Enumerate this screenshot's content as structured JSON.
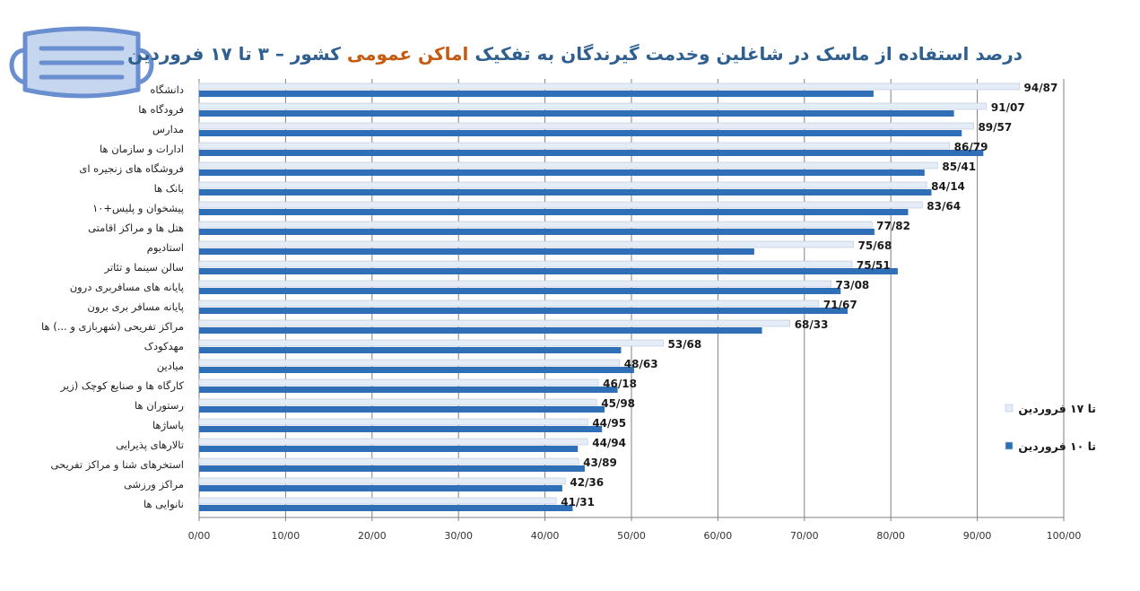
{
  "title": {
    "part1": "درصد استفاده از ماسک در شاغلین وخدمت گیرندگان به تفکیک",
    "part2": "اماکن عمومی",
    "part3": "کشور  –  ۳ تا ۱۷ فروردین"
  },
  "chart_data": {
    "type": "bar",
    "orientation": "horizontal",
    "categories": [
      "دانشگاه",
      "فرودگاه ها",
      "مدارس",
      "ادارات و سازمان ها",
      "فروشگاه های زنجیره ای",
      "بانک ها",
      "پیشخوان و پلیس+۱۰",
      "هتل ها و مراکز اقامتی",
      "استادیوم",
      "سالن سینما و تئاتر",
      "پایانه های مسافربری درون ",
      "پایانه مسافر بری برون ",
      "مراکز تفریحی (شهربازی و ...) ها",
      "مهدکودک",
      "میادین",
      "کارگاه ها و صنایع کوچک (زیر ",
      "رستوران ها",
      "پاساژها",
      "تالارهای پذیرایی",
      "استخرهای شنا و مراکز تفریحی ",
      "مراکز ورزشی",
      "نانوایی ها"
    ],
    "series": [
      {
        "name": "تا ۱۷ فروردین",
        "color": "#e4ecf7",
        "values": [
          94.87,
          91.07,
          89.57,
          86.79,
          85.41,
          84.14,
          83.64,
          77.82,
          75.68,
          75.51,
          73.08,
          71.67,
          68.33,
          53.68,
          48.63,
          46.18,
          45.98,
          44.95,
          44.94,
          43.89,
          42.36,
          41.31
        ],
        "labels": [
          "94/87",
          "91/07",
          "89/57",
          "86/79",
          "85/41",
          "84/14",
          "83/64",
          "77/82",
          "75/68",
          "75/51",
          "73/08",
          "71/67",
          "68/33",
          "53/68",
          "48/63",
          "46/18",
          "45/98",
          "44/95",
          "44/94",
          "43/89",
          "42/36",
          "41/31"
        ]
      },
      {
        "name": "تا ۱۰ فروردین",
        "color": "#2e6fb7",
        "values": [
          78.0,
          87.3,
          88.2,
          90.7,
          83.9,
          84.7,
          82.0,
          78.1,
          64.2,
          80.8,
          74.2,
          75.0,
          65.1,
          48.8,
          50.3,
          48.4,
          46.9,
          46.6,
          43.8,
          44.6,
          42.0,
          43.2
        ]
      }
    ],
    "x_ticks": [
      "0/00",
      "10/00",
      "20/00",
      "30/00",
      "40/00",
      "50/00",
      "60/00",
      "70/00",
      "80/00",
      "90/00",
      "100/00"
    ],
    "xlim": [
      0,
      100
    ],
    "grid": true,
    "legend_position": "right"
  },
  "colors": {
    "title_primary": "#2e5f8f",
    "title_accent": "#c55a11",
    "gridline": "#808080",
    "icon_stroke": "#6a8fd0",
    "icon_fill": "#c6d6ee"
  },
  "icon": "face-mask-icon"
}
